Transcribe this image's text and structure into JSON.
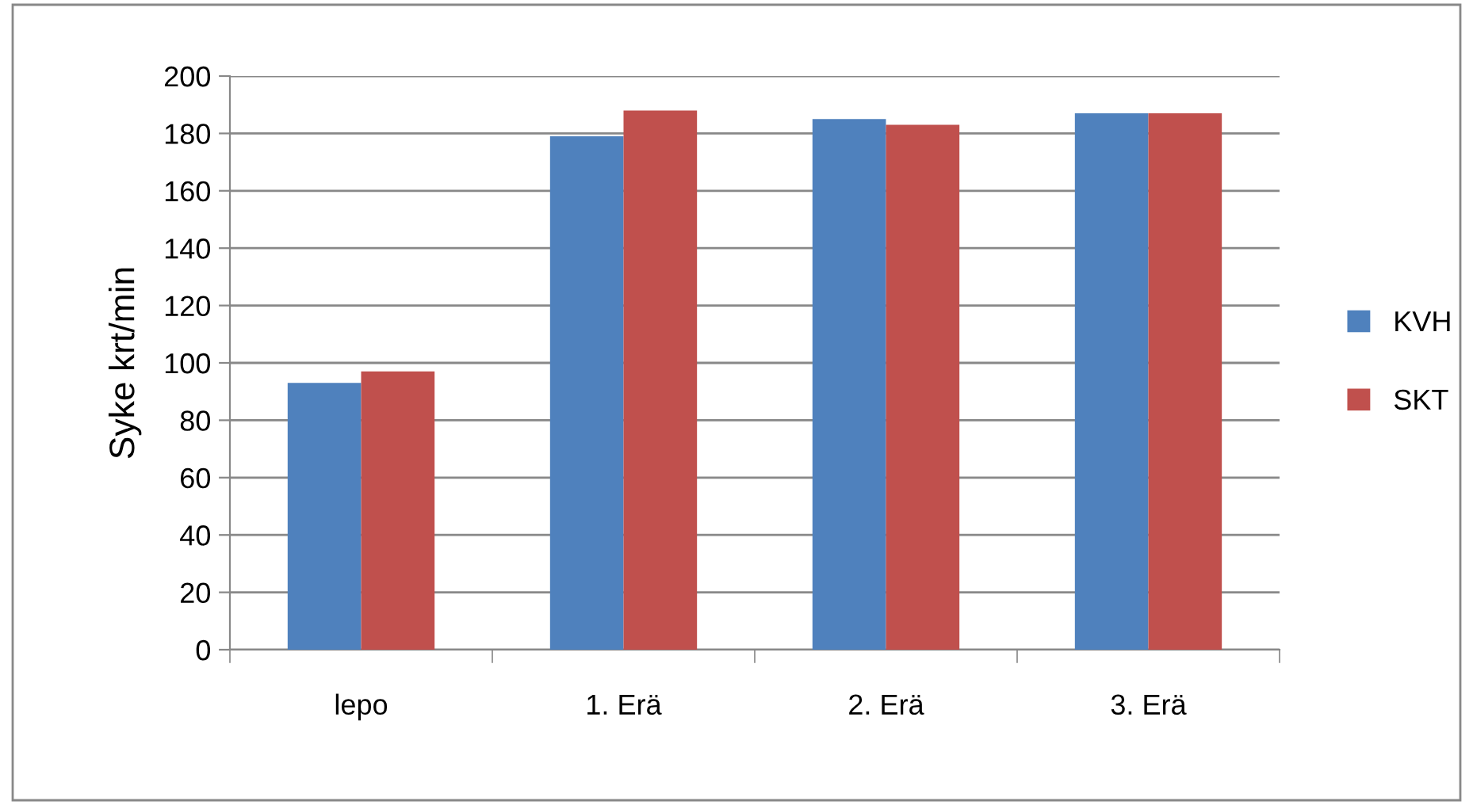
{
  "chart_data": {
    "type": "bar",
    "ylabel": "Syke krt/min",
    "categories": [
      "lepo",
      "1. Erä",
      "2. Erä",
      "3. Erä"
    ],
    "series": [
      {
        "name": "KVH",
        "color": "#4f81bd",
        "values": [
          93,
          179,
          185,
          187
        ]
      },
      {
        "name": "SKT",
        "color": "#c0504d",
        "values": [
          97,
          188,
          183,
          187
        ]
      }
    ],
    "ylim": [
      0,
      200
    ],
    "yticks": [
      0,
      20,
      40,
      60,
      80,
      100,
      120,
      140,
      160,
      180,
      200
    ],
    "grid": "y",
    "legend": "right"
  }
}
